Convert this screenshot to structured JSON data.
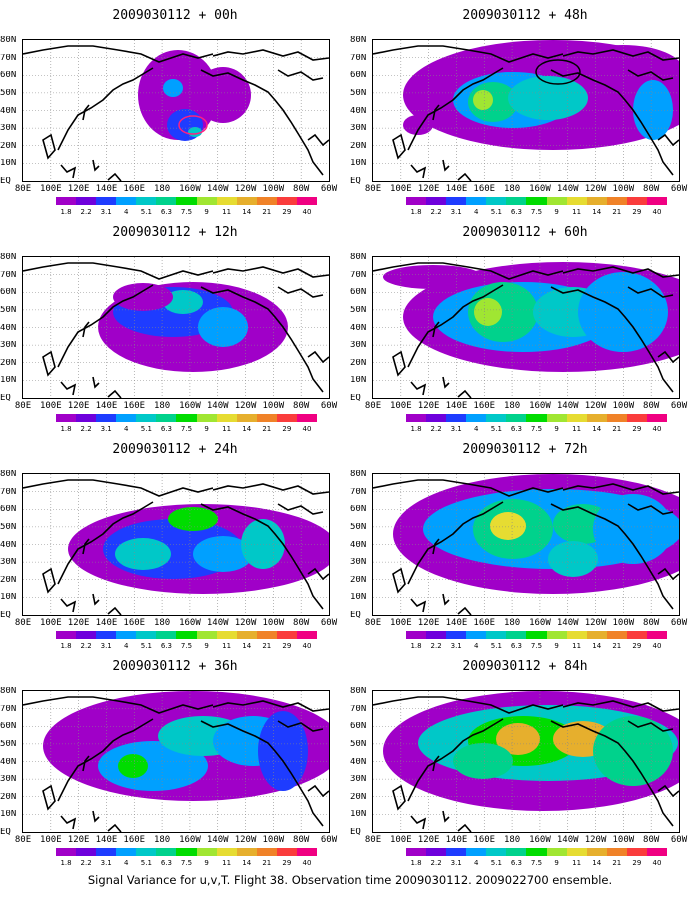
{
  "caption": "Signal Variance for u,v,T. Flight 38. Observation time 2009030112. 2009022700 ensemble.",
  "latitude_labels": [
    "80N",
    "70N",
    "60N",
    "50N",
    "40N",
    "30N",
    "20N",
    "10N",
    "EQ"
  ],
  "longitude_labels": [
    "80E",
    "100E",
    "120E",
    "140E",
    "160E",
    "180",
    "160W",
    "140W",
    "120W",
    "100W",
    "80W",
    "60W"
  ],
  "colorbar": {
    "labels": [
      "1.8",
      "2.2",
      "3.1",
      "4",
      "5.1",
      "6.3",
      "7.5",
      "9",
      "11",
      "14",
      "21",
      "29",
      "40"
    ],
    "colors": [
      "#a000c8",
      "#6e00dc",
      "#1e3cff",
      "#00a0ff",
      "#00c8c8",
      "#00d28c",
      "#00dc00",
      "#a0e632",
      "#e6dc32",
      "#e6af2d",
      "#f08228",
      "#fa3c3c",
      "#f00082"
    ]
  },
  "panels": [
    {
      "title": "2009030112 + 00h"
    },
    {
      "title": "2009030112 + 48h"
    },
    {
      "title": "2009030112 + 12h"
    },
    {
      "title": "2009030112 + 60h"
    },
    {
      "title": "2009030112 + 24h"
    },
    {
      "title": "2009030112 + 72h"
    },
    {
      "title": "2009030112 + 36h"
    },
    {
      "title": "2009030112 + 84h"
    }
  ]
}
